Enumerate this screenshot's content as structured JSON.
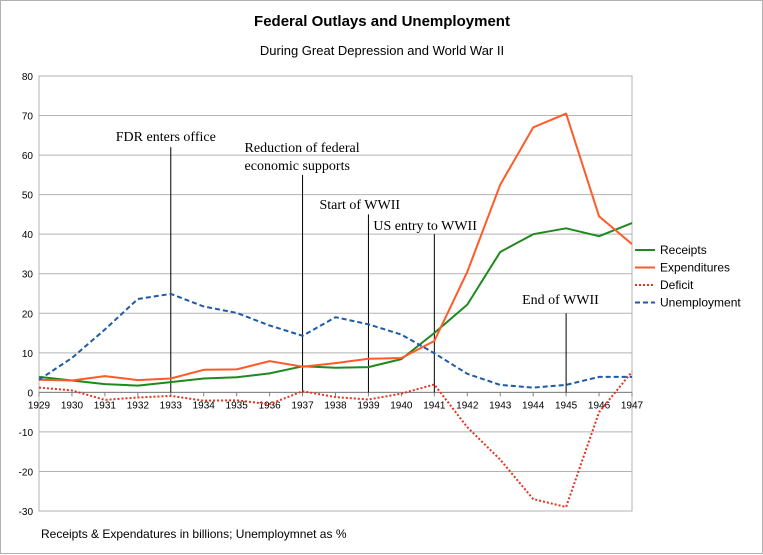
{
  "chart_data": {
    "type": "line",
    "title": "Federal Outlays and Unemployment",
    "subtitle": "During Great Depression and World War II",
    "footnote": "Receipts & Expendatures in billions; Unemploymnet as %",
    "x": [
      "1929",
      "1930",
      "1931",
      "1932",
      "1933",
      "1934",
      "1935",
      "1936",
      "1937",
      "1938",
      "1939",
      "1940",
      "1941",
      "1942",
      "1943",
      "1944",
      "1945",
      "1946",
      "1947"
    ],
    "ylim": [
      -30,
      80
    ],
    "yticks": [
      -30,
      -20,
      -10,
      0,
      10,
      20,
      30,
      40,
      50,
      60,
      70,
      80
    ],
    "grid": true,
    "legend_position": "right",
    "series": [
      {
        "name": "Receipts",
        "color": "#1e8a1e",
        "style": "solid",
        "values": [
          3.9,
          3.0,
          2.1,
          1.7,
          2.6,
          3.5,
          3.8,
          4.8,
          6.6,
          6.2,
          6.4,
          8.4,
          15.0,
          22.2,
          35.5,
          40.0,
          41.5,
          39.5,
          42.8
        ]
      },
      {
        "name": "Expenditures",
        "color": "#ff5a28",
        "style": "solid",
        "values": [
          3.2,
          3.0,
          4.1,
          3.1,
          3.5,
          5.7,
          5.8,
          7.9,
          6.5,
          7.4,
          8.5,
          8.7,
          13.0,
          30.5,
          52.5,
          67.0,
          70.5,
          44.5,
          37.5
        ]
      },
      {
        "name": "Deficit",
        "color": "#e8321e",
        "style": "dotted",
        "values": [
          1.2,
          0.5,
          -1.9,
          -1.3,
          -0.9,
          -2.1,
          -2.0,
          -3.0,
          0.3,
          -1.2,
          -1.8,
          -0.3,
          2.0,
          -8.8,
          -17.0,
          -27.0,
          -29.0,
          -5.0,
          5.2
        ]
      },
      {
        "name": "Unemployment",
        "color": "#1f5aa6",
        "style": "dashed",
        "values": [
          3.2,
          8.7,
          15.9,
          23.6,
          24.9,
          21.7,
          20.1,
          16.9,
          14.3,
          19.0,
          17.2,
          14.6,
          9.9,
          4.7,
          1.9,
          1.2,
          1.9,
          3.9,
          3.9
        ]
      }
    ],
    "annotations": [
      {
        "lines": [
          "FDR enters office"
        ],
        "year": "1933",
        "top_value": 62
      },
      {
        "lines": [
          "Reduction of federal",
          "economic supports"
        ],
        "year": "1937",
        "top_value": 55
      },
      {
        "lines": [
          "Start of WWII"
        ],
        "year": "1939",
        "top_value": 45
      },
      {
        "lines": [
          "US entry to WWII"
        ],
        "year": "1941",
        "top_value": 40
      },
      {
        "lines": [
          "End of WWII"
        ],
        "year": "1945",
        "top_value": 20
      }
    ]
  }
}
